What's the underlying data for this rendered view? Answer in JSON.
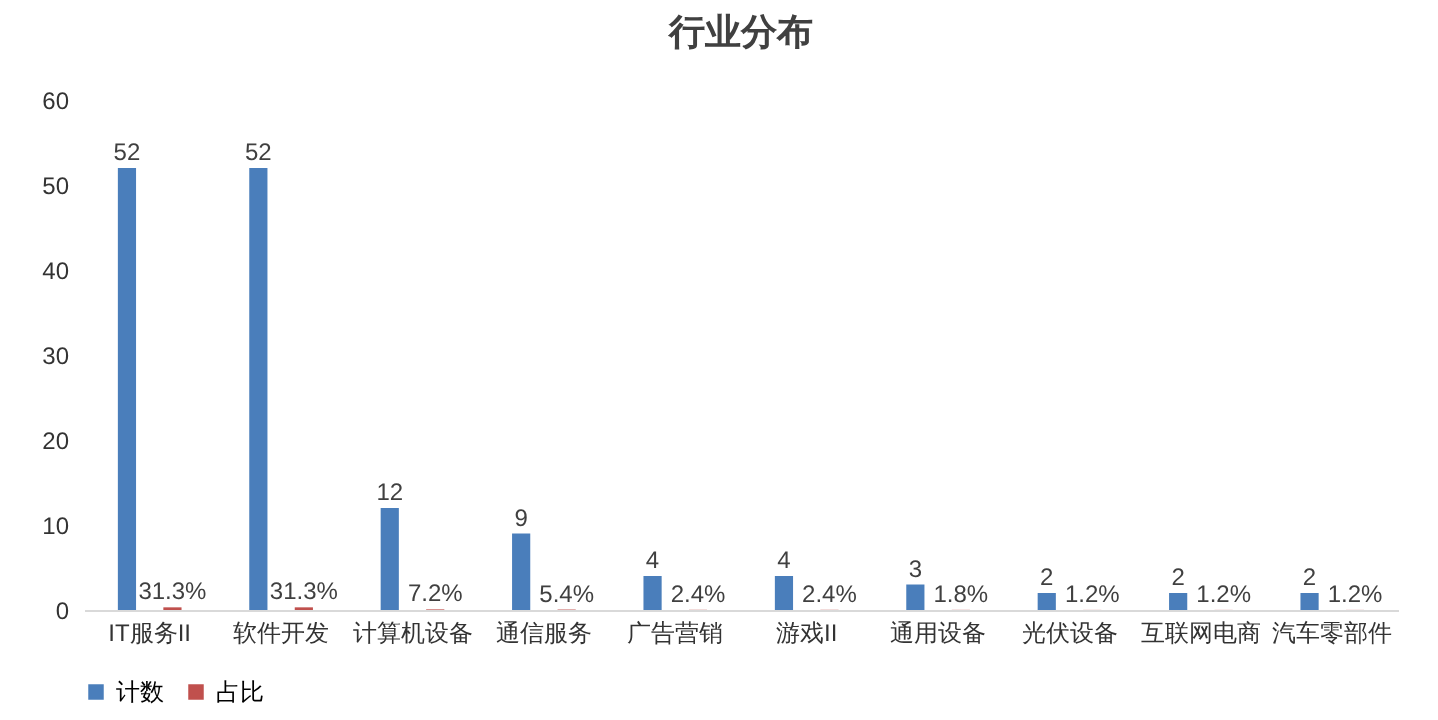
{
  "chart_data": {
    "type": "bar",
    "title": "行业分布",
    "categories": [
      "IT服务II",
      "软件开发",
      "计算机设备",
      "通信服务",
      "广告营销",
      "游戏II",
      "通用设备",
      "光伏设备",
      "互联网电商",
      "汽车零部件"
    ],
    "series": [
      {
        "name": "计数",
        "color": "#4a7ebb",
        "values": [
          52,
          52,
          12,
          9,
          4,
          4,
          3,
          2,
          2,
          2
        ],
        "value_labels": [
          "52",
          "52",
          "12",
          "9",
          "4",
          "4",
          "3",
          "2",
          "2",
          "2"
        ]
      },
      {
        "name": "占比",
        "color": "#c0504d",
        "values": [
          0.313,
          0.313,
          0.072,
          0.054,
          0.024,
          0.024,
          0.018,
          0.012,
          0.012,
          0.012
        ],
        "value_labels": [
          "31.3%",
          "31.3%",
          "7.2%",
          "5.4%",
          "2.4%",
          "2.4%",
          "1.8%",
          "1.2%",
          "1.2%",
          "1.2%"
        ]
      }
    ],
    "ylim": [
      0,
      60
    ],
    "yticks": [
      0,
      10,
      20,
      30,
      40,
      50,
      60
    ],
    "grid": false,
    "legend": "bottom"
  }
}
